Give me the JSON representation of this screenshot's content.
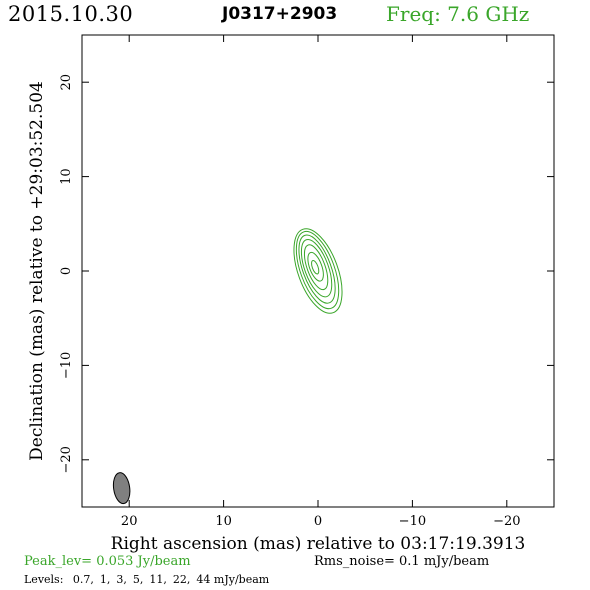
{
  "header": {
    "date": "2015.10.30",
    "source": "J0317+2903",
    "freq": "Freq: 7.6 GHz"
  },
  "footer": {
    "peak": "Peak_lev=  0.053 Jy/beam",
    "rms": "Rms_noise=   0.1 mJy/beam",
    "levels_prefix": "Levels:",
    "levels": [
      "0.7,",
      "1,",
      "3,",
      "5,",
      "11,",
      "22,",
      "44 mJy/beam"
    ]
  },
  "chart_data": {
    "type": "contour",
    "xlabel": "Right ascension (mas) relative to 03:17:19.3913",
    "ylabel": "Declination (mas) relative to +29:03:52.504",
    "xlim": [
      25,
      -25
    ],
    "ylim": [
      -25,
      25
    ],
    "xticks": [
      20,
      10,
      0,
      -10,
      -20
    ],
    "yticks": [
      20,
      10,
      0,
      -10,
      -20
    ],
    "xtick_labels": [
      "20",
      "10",
      "0",
      "−10",
      "−20"
    ],
    "ytick_labels": [
      "20",
      "10",
      "0",
      "−10",
      "−20"
    ],
    "contour_color": "#3aa62a",
    "contour_levels_mJy": [
      0.7,
      1,
      3,
      5,
      11,
      22,
      44
    ],
    "contours": [
      {
        "level": 0.7,
        "cx": 0.0,
        "cy": 0.0,
        "a": 2.1,
        "b": 4.7,
        "angle": 20
      },
      {
        "level": 1,
        "cx": 0.05,
        "cy": 0.1,
        "a": 1.8,
        "b": 4.3,
        "angle": 20
      },
      {
        "level": 3,
        "cx": 0.1,
        "cy": 0.2,
        "a": 1.5,
        "b": 3.8,
        "angle": 20
      },
      {
        "level": 5,
        "cx": 0.15,
        "cy": 0.3,
        "a": 1.25,
        "b": 3.2,
        "angle": 20
      },
      {
        "level": 11,
        "cx": 0.2,
        "cy": 0.4,
        "a": 0.95,
        "b": 2.5,
        "angle": 20
      },
      {
        "level": 22,
        "cx": 0.25,
        "cy": 0.45,
        "a": 0.65,
        "b": 1.6,
        "angle": 20
      },
      {
        "level": 44,
        "cx": 0.3,
        "cy": 0.4,
        "a": 0.3,
        "b": 0.75,
        "angle": 20
      }
    ],
    "beam": {
      "cx": 20.8,
      "cy": -23.0,
      "a": 0.85,
      "b": 1.65,
      "angle": 8,
      "fill": "#808080"
    },
    "grid": false
  }
}
